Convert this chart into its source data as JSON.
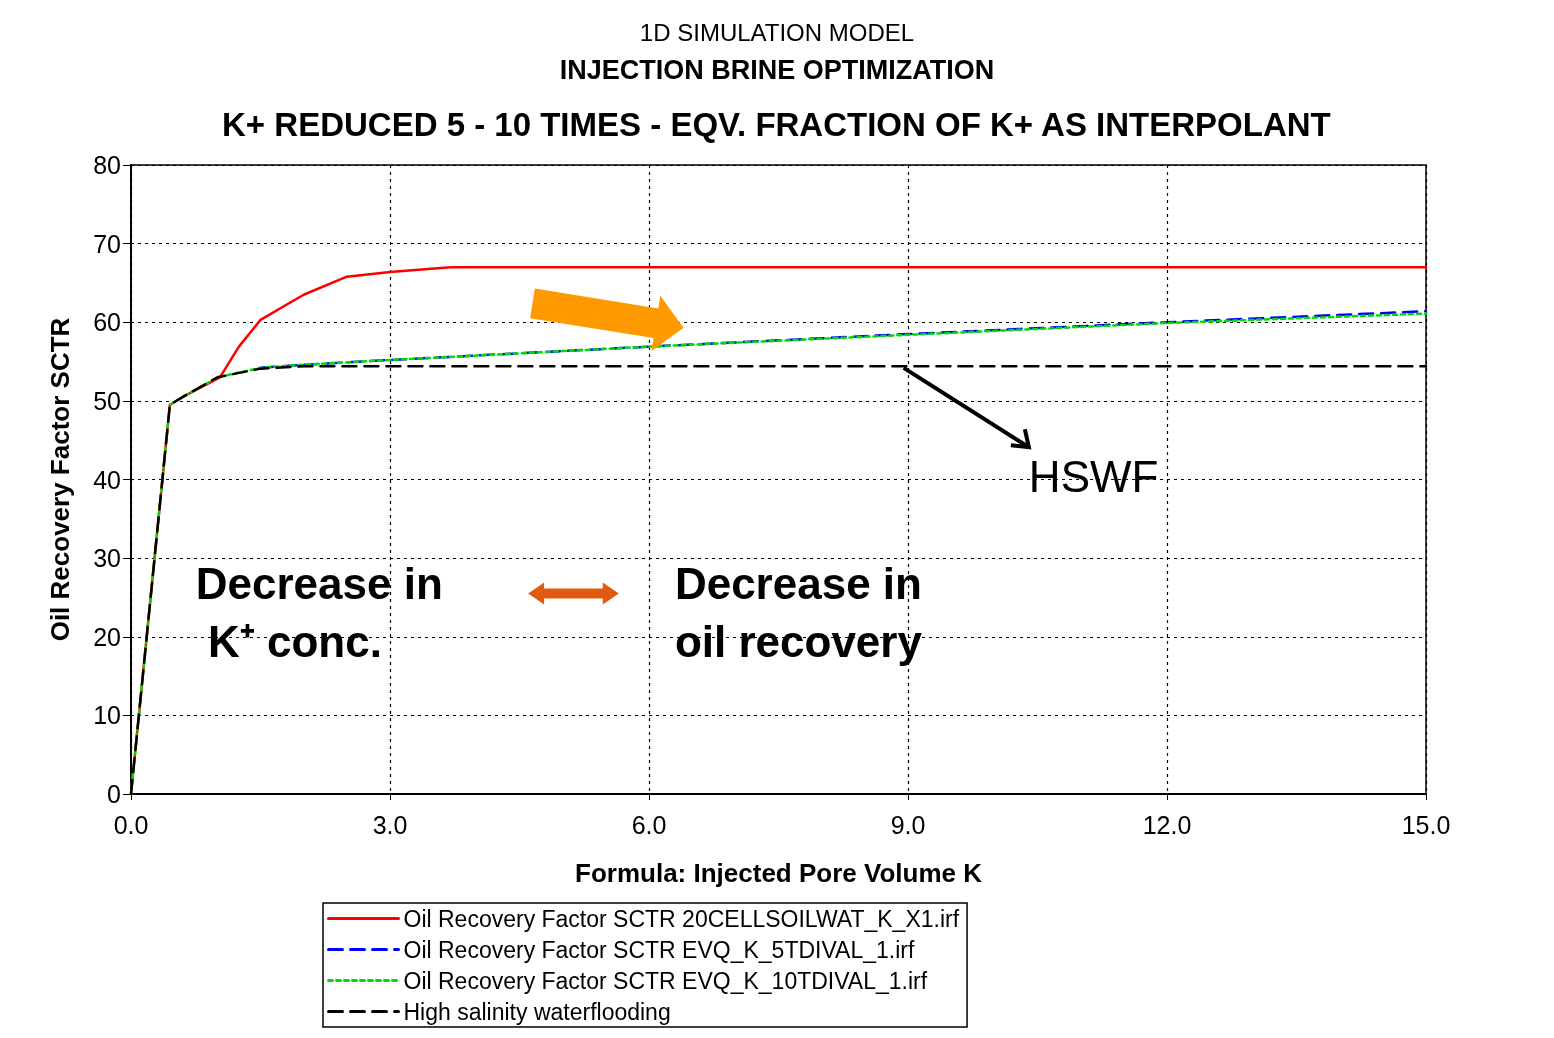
{
  "chart_data": {
    "type": "line",
    "title": "K+ REDUCED 5 - 10 TIMES - EQV. FRACTION OF K+ AS INTERPOLANT",
    "subtitle": "INJECTION BRINE OPTIMIZATION",
    "xlabel": "Formula: Injected Pore Volume K",
    "ylabel": "Oil Recovery Factor SCTR",
    "annotations": [
      "1D SIMULATION MODEL",
      {
        "text": "HSWF",
        "x": 8.9,
        "y": 54.4
      },
      "Decrease in K⁺ conc.",
      "Decrease in oil recovery"
    ],
    "xlim": [
      0,
      15
    ],
    "ylim": [
      0,
      80
    ],
    "xticks": [
      {
        "value": 0,
        "label": "0.0"
      },
      {
        "value": 3,
        "label": "3.0"
      },
      {
        "value": 6,
        "label": "6.0"
      },
      {
        "value": 9,
        "label": "9.0"
      },
      {
        "value": 12,
        "label": "12.0"
      },
      {
        "value": 15,
        "label": "15.0"
      }
    ],
    "yticks": [
      0,
      10,
      20,
      30,
      40,
      50,
      60,
      70,
      80
    ],
    "grid": true,
    "legend": "bottom",
    "marker": "none",
    "series": [
      {
        "name": "Oil Recovery Factor SCTR 20CELLSOILWAT_K_X1.irf",
        "color": "#ff0000",
        "line_style": "solid",
        "x": [
          0,
          0.45,
          0.6,
          1.03,
          1.25,
          1.5,
          2.0,
          2.5,
          3.0,
          3.7,
          15
        ],
        "values": [
          0,
          49.5,
          50.5,
          53,
          56.9,
          60.3,
          63.5,
          65.8,
          66.4,
          67,
          67
        ]
      },
      {
        "name": "Oil Recovery Factor SCTR EVQ_K_5TDIVAL_1.irf",
        "color": "#0000ff",
        "line_style": "dashed",
        "x": [
          1.5,
          2.0,
          3.0,
          6.0,
          9.0,
          12.0,
          15.0
        ],
        "values": [
          54.2,
          54.6,
          55.2,
          56.9,
          58.5,
          60.0,
          61.4
        ]
      },
      {
        "name": "Oil Recovery Factor SCTR EVQ_K_10TDIVAL_1.irf",
        "color": "#00dd00",
        "line_style": "dotted",
        "x": [
          0,
          0.45,
          0.6,
          1.0,
          1.5,
          2.0,
          3.0,
          6.0,
          9.0,
          12.0,
          15.0
        ],
        "values": [
          0,
          49.5,
          50.5,
          53,
          54.2,
          54.6,
          55.2,
          56.9,
          58.4,
          59.9,
          61.1
        ]
      },
      {
        "name": "High salinity waterflooding",
        "color": "#000000",
        "line_style": "dashed",
        "x": [
          0,
          0.45,
          0.6,
          1.0,
          1.5,
          2.0,
          3.0,
          15.0
        ],
        "values": [
          0,
          49.5,
          50.5,
          53,
          54.1,
          54.4,
          54.4,
          54.4
        ]
      }
    ]
  }
}
